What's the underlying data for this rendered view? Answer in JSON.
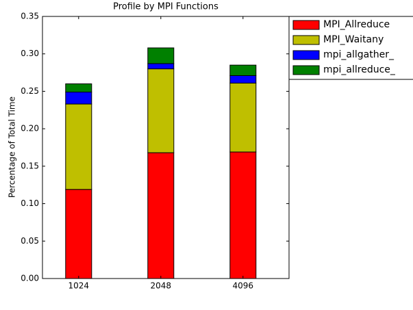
{
  "chart_data": {
    "type": "stacked-bar",
    "title": "Profile by MPI Functions",
    "y_label": "Percentage of Total Time",
    "categories": [
      "1024",
      "2048",
      "4096"
    ],
    "series": [
      {
        "name": "MPI_Allreduce",
        "color": "#ff0000",
        "values": [
          0.119,
          0.168,
          0.169
        ]
      },
      {
        "name": "MPI_Waitany",
        "color": "#bfbf00",
        "values": [
          0.114,
          0.112,
          0.092
        ]
      },
      {
        "name": "mpi_allgather_",
        "color": "#0000ff",
        "values": [
          0.016,
          0.007,
          0.01
        ]
      },
      {
        "name": "mpi_allreduce_",
        "color": "#008000",
        "values": [
          0.011,
          0.021,
          0.014
        ]
      }
    ],
    "ylim": [
      0,
      0.35
    ],
    "yticks": [
      {
        "value": 0,
        "label": "0.00"
      },
      0.05,
      {
        "value": 0.1,
        "label": "0.10"
      },
      0.15,
      {
        "value": 0.2,
        "label": "0.20"
      },
      0.25,
      {
        "value": 0.3,
        "label": "0.30"
      },
      0.35
    ],
    "legend": "upper-right-outside"
  }
}
